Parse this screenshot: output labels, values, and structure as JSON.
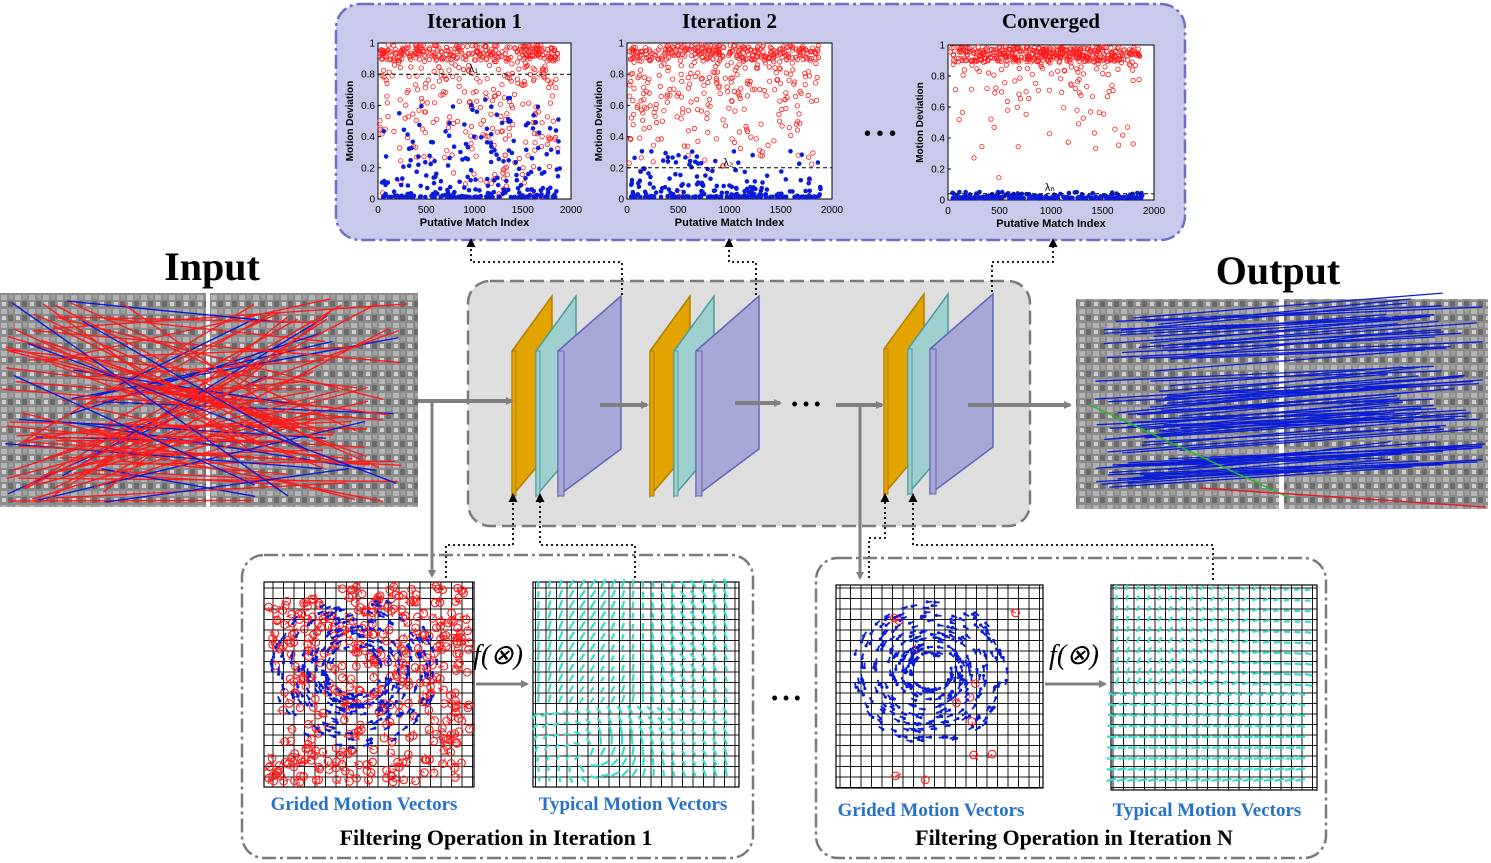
{
  "plots": [
    {
      "title": "Iteration 1",
      "threshold": 0.8,
      "marker": "λ₁"
    },
    {
      "title": "Iteration 2",
      "threshold": 0.2,
      "marker": "λ₂"
    },
    {
      "title": "Converged",
      "threshold": 0.04,
      "marker": "λₙ"
    }
  ],
  "plot_axes": {
    "ylabel": "Motion Deviation",
    "xlabel": "Putative Match Index",
    "y_ticks": [
      "0",
      "0.2",
      "0.4",
      "0.6",
      "0.8",
      "1"
    ],
    "x_ticks": [
      "0",
      "500",
      "1000",
      "1500",
      "2000"
    ]
  },
  "plot_gap_dots": "• • •",
  "input_label": "Input",
  "output_label": "Output",
  "pipeline_dots": "• • •",
  "filter_panels": [
    {
      "left_caption": "Grided Motion Vectors",
      "right_caption": "Typical Motion Vectors",
      "operator": "f(⊗)",
      "title": "Filtering Operation in Iteration 1"
    },
    {
      "left_caption": "Grided Motion Vectors",
      "right_caption": "Typical Motion Vectors",
      "operator": "f(⊗)",
      "title": "Filtering Operation in Iteration N"
    }
  ],
  "bottom_dots": "• • •",
  "colors": {
    "panel_fill": "#c9c9ec",
    "panel_stroke": "#6f6fc6",
    "block_orange": "#e3a400",
    "block_teal": "#9fd0d0",
    "block_purple": "#a8a8d8",
    "outlier_red": "#ff1a1a",
    "inlier_blue": "#0a1cd8",
    "typical_cyan": "#33dccc",
    "caption_blue": "#2672c8"
  }
}
